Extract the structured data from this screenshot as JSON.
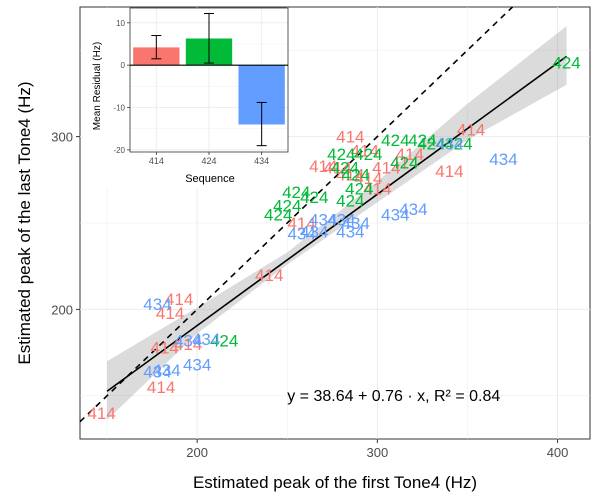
{
  "chart_data": [
    {
      "type": "scatter",
      "xlabel": "Estimated peak of the first Tone4 (Hz)",
      "ylabel": "Estimated peak of the last Tone4 (Hz)",
      "xlim": [
        135,
        418
      ],
      "ylim": [
        125,
        375
      ],
      "x_ticks": [
        200,
        300,
        400
      ],
      "y_ticks": [
        200,
        300
      ],
      "x_tick_labels": [
        "200",
        "300",
        "400"
      ],
      "y_tick_labels": [
        "200",
        "300"
      ],
      "grid": true,
      "colors": {
        "414": "#F8766D",
        "424": "#00BA38",
        "434": "#619CFF"
      },
      "annotation": "y = 38.64 + 0.76 · x, R² = 0.84",
      "annotation_position": {
        "x": 250,
        "y": 147
      },
      "fit_line": {
        "intercept": 38.64,
        "slope": 0.76,
        "x_range": [
          150,
          405
        ]
      },
      "confidence_band": {
        "x": [
          150,
          200,
          250,
          300,
          350,
          405
        ],
        "lower": [
          136,
          186,
          226,
          262,
          298,
          330
        ],
        "upper": [
          170,
          201,
          233,
          274,
          319,
          364
        ]
      },
      "reference_line": {
        "type": "y=x",
        "style": "dashed"
      },
      "series": [
        {
          "name": "414",
          "points": [
            [
              147,
              140
            ],
            [
              180,
              155
            ],
            [
              182,
              178
            ],
            [
              185,
              198
            ],
            [
              190,
              206
            ],
            [
              195,
              180
            ],
            [
              240,
              220
            ],
            [
              258,
              250
            ],
            [
              285,
              300
            ],
            [
              293,
              292
            ],
            [
              270,
              283
            ],
            [
              278,
              282
            ],
            [
              285,
              278
            ],
            [
              295,
              276
            ],
            [
              300,
              270
            ],
            [
              305,
              282
            ],
            [
              315,
              285
            ],
            [
              318,
              290
            ],
            [
              340,
              280
            ],
            [
              352,
              304
            ]
          ]
        },
        {
          "name": "424",
          "points": [
            [
              215,
              182
            ],
            [
              245,
              255
            ],
            [
              250,
              260
            ],
            [
              255,
              268
            ],
            [
              265,
              265
            ],
            [
              280,
              290
            ],
            [
              282,
              282
            ],
            [
              285,
              263
            ],
            [
              290,
              270
            ],
            [
              288,
              278
            ],
            [
              295,
              290
            ],
            [
              310,
              298
            ],
            [
              315,
              285
            ],
            [
              325,
              298
            ],
            [
              330,
              296
            ],
            [
              345,
              296
            ],
            [
              405,
              343
            ]
          ]
        },
        {
          "name": "434",
          "points": [
            [
              178,
              203
            ],
            [
              178,
              164
            ],
            [
              183,
              165
            ],
            [
              195,
              182
            ],
            [
              200,
              168
            ],
            [
              205,
              183
            ],
            [
              258,
              244
            ],
            [
              265,
              245
            ],
            [
              270,
              252
            ],
            [
              280,
              252
            ],
            [
              285,
              245
            ],
            [
              288,
              250
            ],
            [
              310,
              255
            ],
            [
              320,
              258
            ],
            [
              340,
              296
            ],
            [
              370,
              287
            ]
          ]
        }
      ]
    },
    {
      "type": "bar",
      "title": "",
      "xlabel": "Sequence",
      "ylabel": "Mean Residual (Hz)",
      "categories": [
        "414",
        "424",
        "434"
      ],
      "values": [
        4.2,
        6.3,
        -14.0
      ],
      "error": [
        [
          1.5,
          7.0
        ],
        [
          0.5,
          12.2
        ],
        [
          -19.0,
          -8.8
        ]
      ],
      "ylim": [
        -20.5,
        13.5
      ],
      "y_ticks": [
        -20,
        -10,
        0,
        10
      ],
      "y_tick_labels": [
        "-20",
        "-10",
        "0",
        "10"
      ],
      "colors": [
        "#F8766D",
        "#00BA38",
        "#619CFF"
      ]
    }
  ]
}
